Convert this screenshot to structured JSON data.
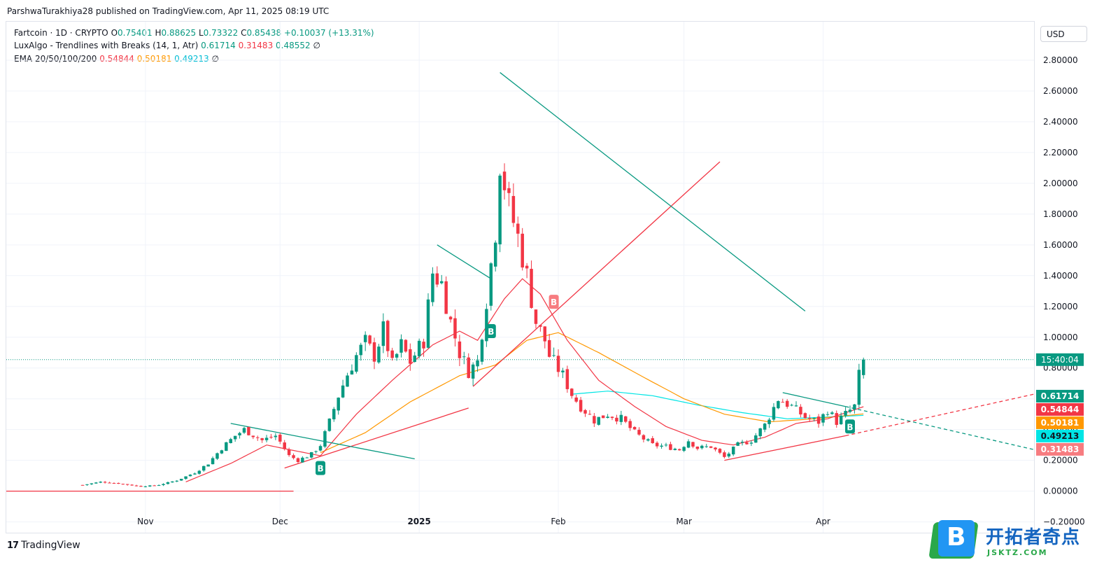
{
  "attribution": "ParshwaTurakhiya28 published on TradingView.com, Apr 11, 2025 08:19 UTC",
  "legend": {
    "symbol": "Fartcoin · 1D · CRYPTO",
    "o_label": "O",
    "o": "0.75401",
    "h_label": "H",
    "h": "0.88625",
    "l_label": "L",
    "l": "0.73322",
    "c_label": "C",
    "c": "0.85438",
    "change": "+0.10037 (+13.31%)",
    "lux_name": "LuxAlgo - Trendlines with Breaks (14, 1, Atr)",
    "lux_v1": "0.61714",
    "lux_v2": "0.31483",
    "lux_v3": "0.48552",
    "ema_name": "EMA 20/50/100/200",
    "ema_v1": "0.54844",
    "ema_v2": "0.50181",
    "ema_v3": "0.49213",
    "empty_symbol": "∅"
  },
  "currency": "USD",
  "branding": "TradingView",
  "watermark": {
    "logo_letter": "B",
    "title": "开拓者奇点",
    "url": "JSKTZ.COM"
  },
  "colors": {
    "up": "#089981",
    "down": "#f23645",
    "ema20": "#f23645",
    "ema50": "#ff9800",
    "ema100": "#00e5e5",
    "trend_down": "#089981",
    "trend_up": "#f23645"
  },
  "chart_data": {
    "type": "candlestick",
    "symbol": "Fartcoin",
    "interval": "1D",
    "y_ticks": [
      2.8,
      2.6,
      2.4,
      2.2,
      2.0,
      1.8,
      1.6,
      1.4,
      1.2,
      1.0,
      0.8,
      0.6,
      0.4,
      0.2,
      0.0,
      -0.2
    ],
    "y_tick_labels": [
      "2.80000",
      "2.60000",
      "2.40000",
      "2.20000",
      "2.00000",
      "1.80000",
      "1.60000",
      "1.40000",
      "1.20000",
      "1.00000",
      "0.80000",
      "0.60000",
      "0.40000",
      "0.20000",
      "0.00000",
      "−0.20000"
    ],
    "ylim": [
      -0.27,
      3.05
    ],
    "x_ticks": [
      {
        "label": "Nov",
        "date": "2024-11-01",
        "bold": false
      },
      {
        "label": "Dec",
        "date": "2024-12-01",
        "bold": false
      },
      {
        "label": "2025",
        "date": "2025-01-01",
        "bold": true
      },
      {
        "label": "Feb",
        "date": "2025-02-01",
        "bold": false
      },
      {
        "label": "Mar",
        "date": "2025-03-01",
        "bold": false
      },
      {
        "label": "Apr",
        "date": "2025-04-01",
        "bold": false
      }
    ],
    "xlim": [
      "2024-10-01",
      "2025-05-18"
    ],
    "current_price": 0.85438,
    "countdown": "15:40:04",
    "price_badges": [
      {
        "value": 0.61714,
        "label": "0.61714",
        "color": "#089981"
      },
      {
        "value": 0.54844,
        "label": "0.54844",
        "color": "#f23645"
      },
      {
        "value": 0.50181,
        "label": "0.50181",
        "color": "#ff9800"
      },
      {
        "value": 0.49213,
        "label": "0.49213",
        "color": "#00e5e5"
      },
      {
        "value": 0.31483,
        "label": "0.31483",
        "color": "#f77c80"
      }
    ],
    "close_anchors": [
      [
        "2024-10-18",
        0.04
      ],
      [
        "2024-10-22",
        0.06
      ],
      [
        "2024-10-26",
        0.05
      ],
      [
        "2024-10-31",
        0.03
      ],
      [
        "2024-11-04",
        0.04
      ],
      [
        "2024-11-08",
        0.07
      ],
      [
        "2024-11-12",
        0.12
      ],
      [
        "2024-11-15",
        0.18
      ],
      [
        "2024-11-18",
        0.28
      ],
      [
        "2024-11-21",
        0.36
      ],
      [
        "2024-11-23",
        0.4
      ],
      [
        "2024-11-27",
        0.33
      ],
      [
        "2024-11-30",
        0.36
      ],
      [
        "2024-12-01",
        0.32
      ],
      [
        "2024-12-03",
        0.23
      ],
      [
        "2024-12-05",
        0.2
      ],
      [
        "2024-12-08",
        0.24
      ],
      [
        "2024-12-10",
        0.3
      ],
      [
        "2024-12-12",
        0.45
      ],
      [
        "2024-12-14",
        0.62
      ],
      [
        "2024-12-16",
        0.76
      ],
      [
        "2024-12-18",
        0.88
      ],
      [
        "2024-12-20",
        0.97
      ],
      [
        "2024-12-22",
        0.88
      ],
      [
        "2024-12-24",
        1.05
      ],
      [
        "2024-12-26",
        0.82
      ],
      [
        "2024-12-28",
        0.95
      ],
      [
        "2024-12-30",
        0.84
      ],
      [
        "2025-01-02",
        0.98
      ],
      [
        "2025-01-04",
        1.42
      ],
      [
        "2025-01-06",
        1.35
      ],
      [
        "2025-01-08",
        1.1
      ],
      [
        "2025-01-10",
        0.9
      ],
      [
        "2025-01-12",
        0.78
      ],
      [
        "2025-01-14",
        0.84
      ],
      [
        "2025-01-16",
        1.25
      ],
      [
        "2025-01-18",
        1.7
      ],
      [
        "2025-01-19",
        2.15
      ],
      [
        "2025-01-21",
        1.85
      ],
      [
        "2025-01-23",
        1.65
      ],
      [
        "2025-01-25",
        1.4
      ],
      [
        "2025-01-27",
        1.1
      ],
      [
        "2025-01-29",
        0.98
      ],
      [
        "2025-01-30",
        0.88
      ],
      [
        "2025-02-02",
        0.75
      ],
      [
        "2025-02-04",
        0.63
      ],
      [
        "2025-02-06",
        0.55
      ],
      [
        "2025-02-09",
        0.46
      ],
      [
        "2025-02-12",
        0.5
      ],
      [
        "2025-02-15",
        0.47
      ],
      [
        "2025-02-18",
        0.38
      ],
      [
        "2025-02-22",
        0.3
      ],
      [
        "2025-02-25",
        0.29
      ],
      [
        "2025-02-28",
        0.27
      ],
      [
        "2025-03-02",
        0.33
      ],
      [
        "2025-03-04",
        0.28
      ],
      [
        "2025-03-07",
        0.29
      ],
      [
        "2025-03-10",
        0.22
      ],
      [
        "2025-03-13",
        0.3
      ],
      [
        "2025-03-16",
        0.33
      ],
      [
        "2025-03-19",
        0.43
      ],
      [
        "2025-03-22",
        0.6
      ],
      [
        "2025-03-25",
        0.55
      ],
      [
        "2025-03-28",
        0.48
      ],
      [
        "2025-03-31",
        0.45
      ],
      [
        "2025-04-02",
        0.53
      ],
      [
        "2025-04-04",
        0.45
      ],
      [
        "2025-04-06",
        0.5
      ],
      [
        "2025-04-08",
        0.55
      ],
      [
        "2025-04-09",
        0.75
      ],
      [
        "2025-04-10",
        0.85438
      ]
    ],
    "ema20_anchors": [
      [
        "2024-11-10",
        0.06
      ],
      [
        "2024-11-20",
        0.18
      ],
      [
        "2024-11-28",
        0.3
      ],
      [
        "2024-12-03",
        0.27
      ],
      [
        "2024-12-10",
        0.23
      ],
      [
        "2024-12-18",
        0.5
      ],
      [
        "2024-12-26",
        0.72
      ],
      [
        "2025-01-04",
        0.95
      ],
      [
        "2025-01-10",
        1.04
      ],
      [
        "2025-01-14",
        0.98
      ],
      [
        "2025-01-20",
        1.25
      ],
      [
        "2025-01-24",
        1.38
      ],
      [
        "2025-01-28",
        1.28
      ],
      [
        "2025-02-03",
        0.98
      ],
      [
        "2025-02-10",
        0.72
      ],
      [
        "2025-02-18",
        0.55
      ],
      [
        "2025-02-25",
        0.42
      ],
      [
        "2025-03-05",
        0.33
      ],
      [
        "2025-03-12",
        0.3
      ],
      [
        "2025-03-19",
        0.35
      ],
      [
        "2025-03-26",
        0.44
      ],
      [
        "2025-04-02",
        0.47
      ],
      [
        "2025-04-10",
        0.54844
      ]
    ],
    "ema50_anchors": [
      [
        "2024-12-10",
        0.25
      ],
      [
        "2024-12-20",
        0.38
      ],
      [
        "2024-12-30",
        0.58
      ],
      [
        "2025-01-10",
        0.75
      ],
      [
        "2025-01-18",
        0.82
      ],
      [
        "2025-01-25",
        0.98
      ],
      [
        "2025-02-01",
        1.03
      ],
      [
        "2025-02-10",
        0.9
      ],
      [
        "2025-02-20",
        0.74
      ],
      [
        "2025-03-01",
        0.6
      ],
      [
        "2025-03-10",
        0.5
      ],
      [
        "2025-03-20",
        0.45
      ],
      [
        "2025-03-30",
        0.47
      ],
      [
        "2025-04-10",
        0.50181
      ]
    ],
    "ema100_anchors": [
      [
        "2025-02-04",
        0.63
      ],
      [
        "2025-02-12",
        0.65
      ],
      [
        "2025-02-22",
        0.62
      ],
      [
        "2025-03-04",
        0.56
      ],
      [
        "2025-03-14",
        0.51
      ],
      [
        "2025-03-24",
        0.47
      ],
      [
        "2025-04-10",
        0.49213
      ]
    ],
    "trendlines_down": [
      {
        "from": [
          "2024-11-20",
          0.44
        ],
        "to": [
          "2024-12-31",
          0.21
        ],
        "dashed": false
      },
      {
        "from": [
          "2025-01-05",
          1.6
        ],
        "to": [
          "2025-01-17",
          1.38
        ],
        "dashed": false
      },
      {
        "from": [
          "2025-01-19",
          2.72
        ],
        "to": [
          "2025-03-28",
          1.17
        ],
        "dashed": false
      },
      {
        "from": [
          "2025-03-23",
          0.64
        ],
        "to": [
          "2025-04-06",
          0.55
        ],
        "dashed": false
      },
      {
        "from": [
          "2025-04-06",
          0.55
        ],
        "to": [
          "2025-05-18",
          0.27
        ],
        "dashed": true
      }
    ],
    "trendlines_up": [
      {
        "from": [
          "2024-10-01",
          0.0
        ],
        "to": [
          "2024-12-04",
          0.0
        ],
        "dashed": false
      },
      {
        "from": [
          "2024-12-02",
          0.15
        ],
        "to": [
          "2025-01-12",
          0.54
        ],
        "dashed": false
      },
      {
        "from": [
          "2025-01-13",
          0.68
        ],
        "to": [
          "2025-03-09",
          2.14
        ],
        "dashed": false
      },
      {
        "from": [
          "2025-03-10",
          0.2
        ],
        "to": [
          "2025-04-06",
          0.36
        ],
        "dashed": false
      },
      {
        "from": [
          "2025-04-06",
          0.36
        ],
        "to": [
          "2025-05-18",
          0.63
        ],
        "dashed": true
      }
    ],
    "signals": [
      {
        "date": "2024-12-10",
        "price": 0.15,
        "label": "B",
        "type": "bullish"
      },
      {
        "date": "2025-01-17",
        "price": 1.04,
        "label": "B",
        "type": "bullish"
      },
      {
        "date": "2025-01-31",
        "price": 1.23,
        "label": "B",
        "type": "bearish"
      },
      {
        "date": "2025-04-07",
        "price": 0.42,
        "label": "B",
        "type": "bullish"
      }
    ]
  }
}
